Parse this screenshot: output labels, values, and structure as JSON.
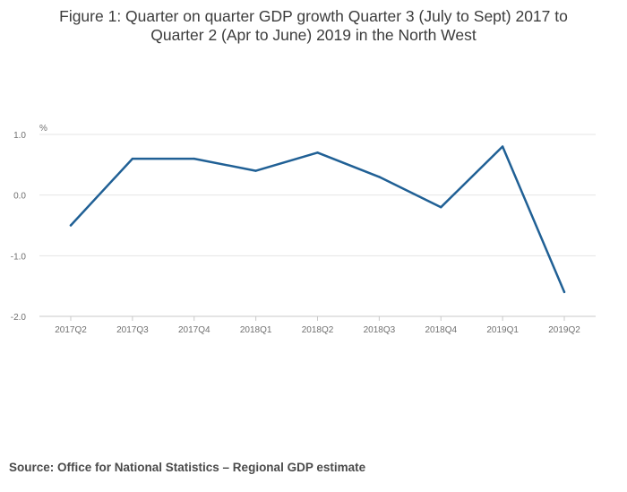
{
  "chart_data": {
    "type": "line",
    "title_line1": "Figure 1: Quarter on quarter GDP growth Quarter 3 (July to Sept) 2017 to",
    "title_line2": "Quarter 2 (Apr to June) 2019 in the North West",
    "ylabel": "%",
    "xlabel": "",
    "ylim": [
      -2.0,
      1.0
    ],
    "yticks": [
      1.0,
      0.0,
      -1.0,
      -2.0
    ],
    "ytick_labels": [
      "1.0",
      "0.0",
      "-1.0",
      "-2.0"
    ],
    "grid": true,
    "categories": [
      "2017Q2",
      "2017Q3",
      "2017Q4",
      "2018Q1",
      "2018Q2",
      "2018Q3",
      "2018Q4",
      "2019Q1",
      "2019Q2"
    ],
    "series": [
      {
        "name": "Quarter on quarter GDP growth",
        "values": [
          -0.5,
          0.6,
          0.6,
          0.4,
          0.7,
          0.3,
          -0.2,
          0.8,
          -1.6
        ]
      }
    ],
    "line_color": "#206095",
    "source": "Source: Office for National Statistics – Regional GDP estimate"
  }
}
